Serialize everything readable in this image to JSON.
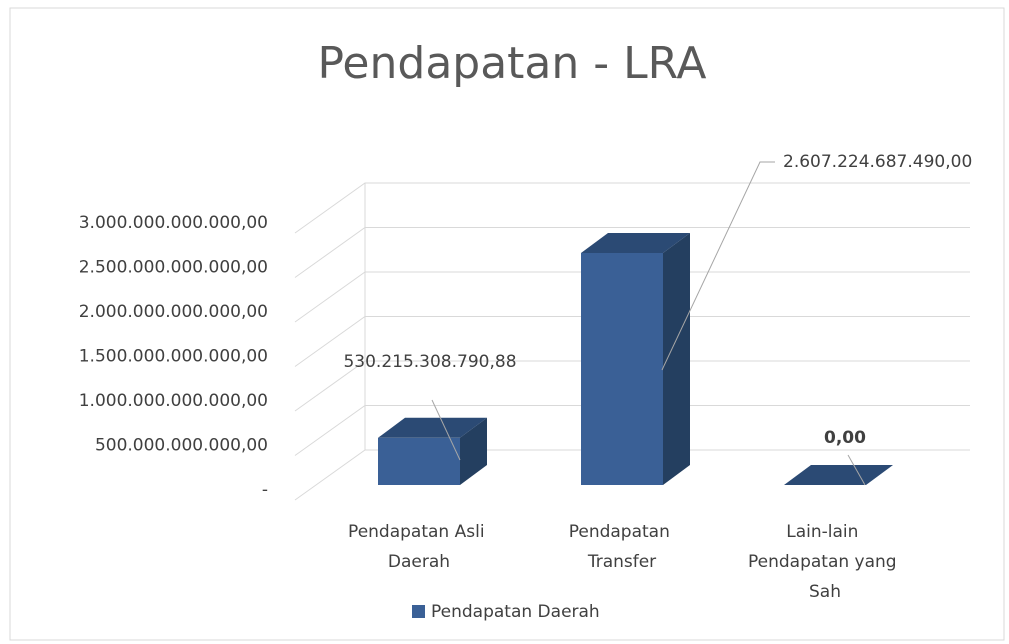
{
  "chart_data": {
    "type": "bar3d",
    "title": "Pendapatan - LRA",
    "categories": [
      "Pendapatan Asli Daerah",
      "Pendapatan Transfer",
      "Lain-lain Pendapatan yang Sah"
    ],
    "series": [
      {
        "name": "Pendapatan Daerah",
        "color": "#3a6096",
        "values": [
          530215308790.88,
          2607224687490,
          0
        ],
        "value_labels": [
          "530.215.308.790,88",
          "2.607.224.687.490,00",
          "0,00"
        ]
      }
    ],
    "ylim": [
      0,
      3000000000000
    ],
    "yticks": [
      {
        "value": 0,
        "label": "-"
      },
      {
        "value": 500000000000,
        "label": "500.000.000.000,00"
      },
      {
        "value": 1000000000000,
        "label": "1.000.000.000.000,00"
      },
      {
        "value": 1500000000000,
        "label": "1.500.000.000.000,00"
      },
      {
        "value": 2000000000000,
        "label": "2.000.000.000.000,00"
      },
      {
        "value": 2500000000000,
        "label": "2.500.000.000.000,00"
      },
      {
        "value": 3000000000000,
        "label": "3.000.000.000.000,00"
      }
    ],
    "grid": true,
    "legend": "bottom"
  }
}
